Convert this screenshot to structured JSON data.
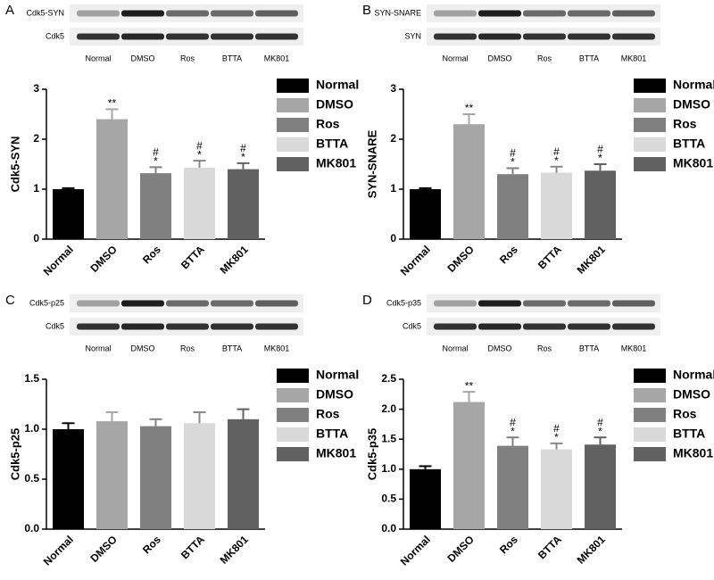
{
  "chart_data": [
    {
      "type": "bar",
      "panel": "A",
      "blot": {
        "rows": [
          "Cdk5-SYN",
          "Cdk5"
        ],
        "lanes": [
          "Normal",
          "DMSO",
          "Ros",
          "BTTA",
          "MK801"
        ]
      },
      "ylabel": "Cdk5-SYN",
      "categories": [
        "Normal",
        "DMSO",
        "Ros",
        "BTTA",
        "MK801"
      ],
      "values": [
        1.0,
        2.4,
        1.32,
        1.43,
        1.4
      ],
      "errors": [
        0.02,
        0.2,
        0.12,
        0.14,
        0.12
      ],
      "colors": [
        "#000000",
        "#a6a6a6",
        "#808080",
        "#d9d9d9",
        "#616161"
      ],
      "annotations": [
        null,
        [
          "**"
        ],
        [
          "#",
          "*"
        ],
        [
          "#",
          "*"
        ],
        [
          "#",
          "*"
        ]
      ],
      "ylim": [
        0,
        3
      ],
      "yticks": [
        0,
        1,
        2,
        3
      ]
    },
    {
      "type": "bar",
      "panel": "B",
      "blot": {
        "rows": [
          "SYN-SNARE",
          "SYN"
        ],
        "lanes": [
          "Normal",
          "DMSO",
          "Ros",
          "BTTA",
          "MK801"
        ]
      },
      "ylabel": "SYN-SNARE",
      "categories": [
        "Normal",
        "DMSO",
        "Ros",
        "BTTA",
        "MK801"
      ],
      "values": [
        1.0,
        2.3,
        1.3,
        1.33,
        1.37
      ],
      "errors": [
        0.02,
        0.2,
        0.12,
        0.12,
        0.13
      ],
      "colors": [
        "#000000",
        "#a6a6a6",
        "#808080",
        "#d9d9d9",
        "#616161"
      ],
      "annotations": [
        null,
        [
          "**"
        ],
        [
          "#",
          "*"
        ],
        [
          "#",
          "*"
        ],
        [
          "#",
          "*"
        ]
      ],
      "ylim": [
        0,
        3
      ],
      "yticks": [
        0,
        1,
        2,
        3
      ]
    },
    {
      "type": "bar",
      "panel": "C",
      "blot": {
        "rows": [
          "Cdk5-p25",
          "Cdk5"
        ],
        "lanes": [
          "Normal",
          "DMSO",
          "Ros",
          "BTTA",
          "MK801"
        ]
      },
      "ylabel": "Cdk5-p25",
      "categories": [
        "Normal",
        "DMSO",
        "Ros",
        "BTTA",
        "MK801"
      ],
      "values": [
        1.0,
        1.08,
        1.03,
        1.06,
        1.1
      ],
      "errors": [
        0.06,
        0.09,
        0.07,
        0.11,
        0.1
      ],
      "colors": [
        "#000000",
        "#a6a6a6",
        "#808080",
        "#d9d9d9",
        "#616161"
      ],
      "annotations": [
        null,
        null,
        null,
        null,
        null
      ],
      "ylim": [
        0,
        1.5
      ],
      "yticks": [
        {
          "value": 0,
          "label": "0.0"
        },
        0.5,
        {
          "value": 1,
          "label": "1.0"
        },
        1.5
      ]
    },
    {
      "type": "bar",
      "panel": "D",
      "blot": {
        "rows": [
          "Cdk5-p35",
          "Cdk5"
        ],
        "lanes": [
          "Normal",
          "DMSO",
          "Ros",
          "BTTA",
          "MK801"
        ]
      },
      "ylabel": "Cdk5-p35",
      "categories": [
        "Normal",
        "DMSO",
        "Ros",
        "BTTA",
        "MK801"
      ],
      "values": [
        1.0,
        2.12,
        1.39,
        1.33,
        1.41
      ],
      "errors": [
        0.05,
        0.17,
        0.14,
        0.1,
        0.12
      ],
      "colors": [
        "#000000",
        "#a6a6a6",
        "#808080",
        "#d9d9d9",
        "#616161"
      ],
      "annotations": [
        null,
        [
          "**"
        ],
        [
          "#",
          "*"
        ],
        [
          "#",
          "*"
        ],
        [
          "#",
          "*"
        ]
      ],
      "ylim": [
        0,
        2.5
      ],
      "yticks": [
        {
          "value": 0,
          "label": "0.0"
        },
        0.5,
        {
          "value": 1,
          "label": "1.0"
        },
        1.5,
        {
          "value": 2,
          "label": "2.0"
        },
        2.5
      ]
    }
  ]
}
